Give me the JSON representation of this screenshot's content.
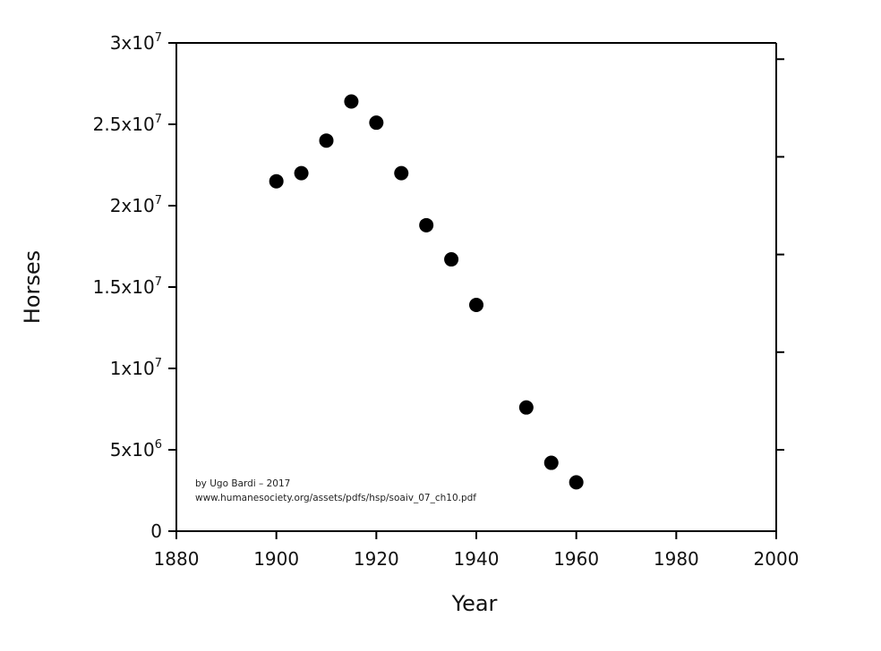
{
  "chart_data": {
    "type": "scatter",
    "title": "",
    "xlabel": "Year",
    "ylabel": "Horses",
    "xlim": [
      1880,
      2000
    ],
    "ylim": [
      0,
      30000000
    ],
    "x_ticks": [
      1880,
      1900,
      1920,
      1940,
      1960,
      1980,
      2000
    ],
    "y_ticks": [
      {
        "value": 0,
        "mantissa": "0",
        "exponent": ""
      },
      {
        "value": 5000000,
        "mantissa": "5x10",
        "exponent": "6"
      },
      {
        "value": 10000000,
        "mantissa": "1x10",
        "exponent": "7"
      },
      {
        "value": 15000000,
        "mantissa": "1.5x10",
        "exponent": "7"
      },
      {
        "value": 20000000,
        "mantissa": "2x10",
        "exponent": "7"
      },
      {
        "value": 25000000,
        "mantissa": "2.5x10",
        "exponent": "7"
      },
      {
        "value": 30000000,
        "mantissa": "3x10",
        "exponent": "7"
      }
    ],
    "right_axis_ticks": [
      5000000,
      11000000,
      17000000,
      23000000,
      29000000
    ],
    "grid": false,
    "marker_color": "#000000",
    "series": [
      {
        "x": [
          1900,
          1905,
          1910,
          1915,
          1920,
          1925,
          1930,
          1935,
          1940,
          1950,
          1955,
          1960
        ],
        "y": [
          21500000,
          22000000,
          24000000,
          26400000,
          25100000,
          22000000,
          18800000,
          16700000,
          13900000,
          7600000,
          4200000,
          3000000
        ]
      }
    ],
    "annotations": [
      "by Ugo Bardi – 2017",
      "www.humanesociety.org/assets/pdfs/hsp/soaiv_07_ch10.pdf"
    ]
  }
}
